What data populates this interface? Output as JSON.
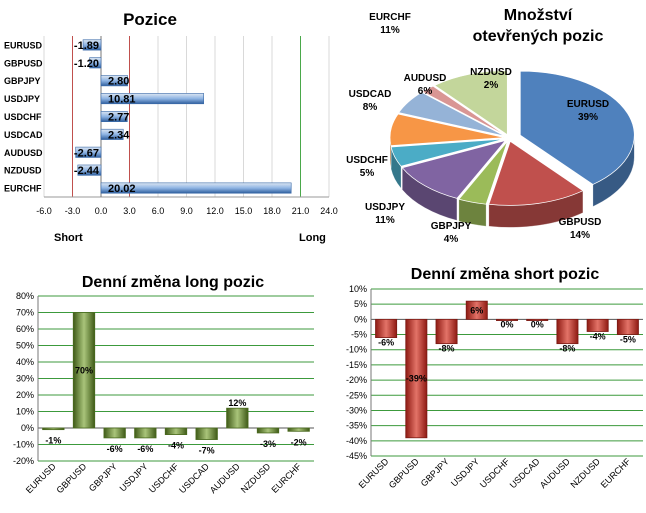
{
  "chart_data": [
    {
      "id": "pozice",
      "type": "bar",
      "orientation": "horizontal",
      "title": "Pozice",
      "categories": [
        "EURUSD",
        "GBPUSD",
        "GBPJPY",
        "USDJPY",
        "USDCHF",
        "USDCAD",
        "AUDUSD",
        "NZDUSD",
        "EURCHF"
      ],
      "values": [
        -1.89,
        -1.2,
        2.8,
        10.81,
        2.77,
        2.34,
        -2.67,
        -2.44,
        20.02
      ],
      "value_labels": [
        "-1.89",
        "-1.20",
        "2.80",
        "10.81",
        "2.77",
        "2.34",
        "-2.67",
        "-2.44",
        "20.02"
      ],
      "xlim": [
        -6,
        24
      ],
      "xticks": [
        -6,
        -3,
        0,
        3,
        6,
        9,
        12,
        15,
        18,
        21,
        24
      ],
      "xtick_labels": [
        "-6.0",
        "-3.0",
        "0.0",
        "3.0",
        "6.0",
        "9.0",
        "12.0",
        "15.0",
        "18.0",
        "21.0",
        "24.0"
      ],
      "left_label": "Short",
      "right_label": "Long",
      "red_lines": [
        -3,
        3
      ],
      "green_lines": [
        21
      ]
    },
    {
      "id": "mnozstvi",
      "type": "pie",
      "title_lines": [
        "Množství",
        "otevřených pozic"
      ],
      "slices": [
        {
          "label": "EURUSD",
          "value": 39,
          "text": "39%",
          "color": "#4f81bd"
        },
        {
          "label": "GBPUSD",
          "value": 14,
          "text": "14%",
          "color": "#c0504d"
        },
        {
          "label": "GBPJPY",
          "value": 4,
          "text": "4%",
          "color": "#9bbb59"
        },
        {
          "label": "USDJPY",
          "value": 11,
          "text": "11%",
          "color": "#8064a2"
        },
        {
          "label": "USDCHF",
          "value": 5,
          "text": "5%",
          "color": "#4bacc6"
        },
        {
          "label": "USDCAD",
          "value": 8,
          "text": "8%",
          "color": "#f79646"
        },
        {
          "label": "AUDUSD",
          "value": 6,
          "text": "6%",
          "color": "#95b3d7"
        },
        {
          "label": "NZDUSD",
          "value": 2,
          "text": "2%",
          "color": "#d99694"
        },
        {
          "label": "EURCHF",
          "value": 11,
          "text": "11%",
          "color": "#c3d69b"
        }
      ]
    },
    {
      "id": "long",
      "type": "bar",
      "title": "Denní změna long pozic",
      "categories": [
        "EURUSD",
        "GBPUSD",
        "GBPJPY",
        "USDJPY",
        "USDCHF",
        "USDCAD",
        "AUDUSD",
        "NZDUSD",
        "EURCHF"
      ],
      "values": [
        -1,
        70,
        -6,
        -6,
        -4,
        -7,
        12,
        -3,
        -2
      ],
      "value_labels": [
        "-1%",
        "70%",
        "-6%",
        "-6%",
        "-4%",
        "-7%",
        "12%",
        "-3%",
        "-2%"
      ],
      "ylim": [
        -20,
        80
      ],
      "yticks": [
        -20,
        -10,
        0,
        10,
        20,
        30,
        40,
        50,
        60,
        70,
        80
      ],
      "ytick_labels": [
        "-20%",
        "-10%",
        "0%",
        "10%",
        "20%",
        "30%",
        "40%",
        "50%",
        "60%",
        "70%",
        "80%"
      ],
      "color": "#6e8f3a",
      "grid": true
    },
    {
      "id": "short",
      "type": "bar",
      "title": "Denní změna short pozic",
      "categories": [
        "EURUSD",
        "GBPUSD",
        "GBPJPY",
        "USDJPY",
        "USDCHF",
        "USDCAD",
        "AUDUSD",
        "NZDUSD",
        "EURCHF"
      ],
      "values": [
        -6,
        -39,
        -8,
        6,
        0,
        0,
        -8,
        -4,
        -5
      ],
      "value_labels": [
        "-6%",
        "-39%",
        "-8%",
        "6%",
        "0%",
        "0%",
        "-8%",
        "-4%",
        "-5%"
      ],
      "ylim": [
        -45,
        10
      ],
      "yticks": [
        -45,
        -40,
        -35,
        -30,
        -25,
        -20,
        -15,
        -10,
        -5,
        0,
        5,
        10
      ],
      "ytick_labels": [
        "-45%",
        "-40%",
        "-35%",
        "-30%",
        "-25%",
        "-20%",
        "-15%",
        "-10%",
        "-5%",
        "0%",
        "5%",
        "10%"
      ],
      "color": "#c0392b",
      "grid": true
    }
  ]
}
